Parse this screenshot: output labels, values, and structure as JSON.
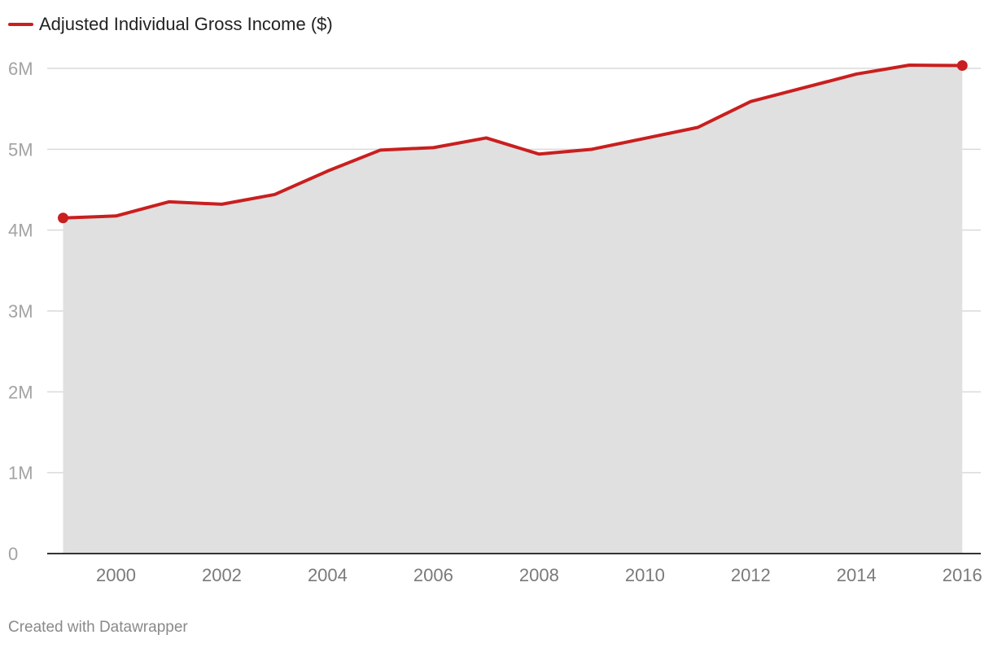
{
  "chart_data": {
    "type": "area",
    "title": "",
    "xlabel": "",
    "ylabel": "",
    "x": [
      1999,
      2000,
      2001,
      2002,
      2003,
      2004,
      2005,
      2006,
      2007,
      2008,
      2009,
      2010,
      2011,
      2012,
      2013,
      2014,
      2015,
      2016
    ],
    "series": [
      {
        "name": "Adjusted Individual Gross Income ($)",
        "color": "#c91f1f",
        "fill_color": "#e0e0e0",
        "values": [
          4150000,
          4175000,
          4350000,
          4320000,
          4440000,
          4730000,
          4990000,
          5020000,
          5140000,
          4940000,
          5000000,
          5135000,
          5270000,
          5590000,
          5760000,
          5930000,
          6040000,
          6035000
        ],
        "endpoint_markers": true
      }
    ],
    "xlim": [
      1998.7,
      2016.35
    ],
    "ylim": [
      0,
      6000000
    ],
    "y_ticks": [
      0,
      1000000,
      2000000,
      3000000,
      4000000,
      5000000,
      6000000
    ],
    "y_tick_labels": [
      "0",
      "1M",
      "2M",
      "3M",
      "4M",
      "5M",
      "6M"
    ],
    "x_ticks": [
      2000,
      2002,
      2004,
      2006,
      2008,
      2010,
      2012,
      2014,
      2016
    ],
    "x_tick_labels": [
      "2000",
      "2002",
      "2004",
      "2006",
      "2008",
      "2010",
      "2012",
      "2014",
      "2016"
    ],
    "grid": "horizontal",
    "legend_position": "top-left"
  },
  "legend": {
    "label": "Adjusted Individual Gross Income ($)",
    "color": "#c91f1f"
  },
  "footer": {
    "credit": "Created with Datawrapper"
  }
}
